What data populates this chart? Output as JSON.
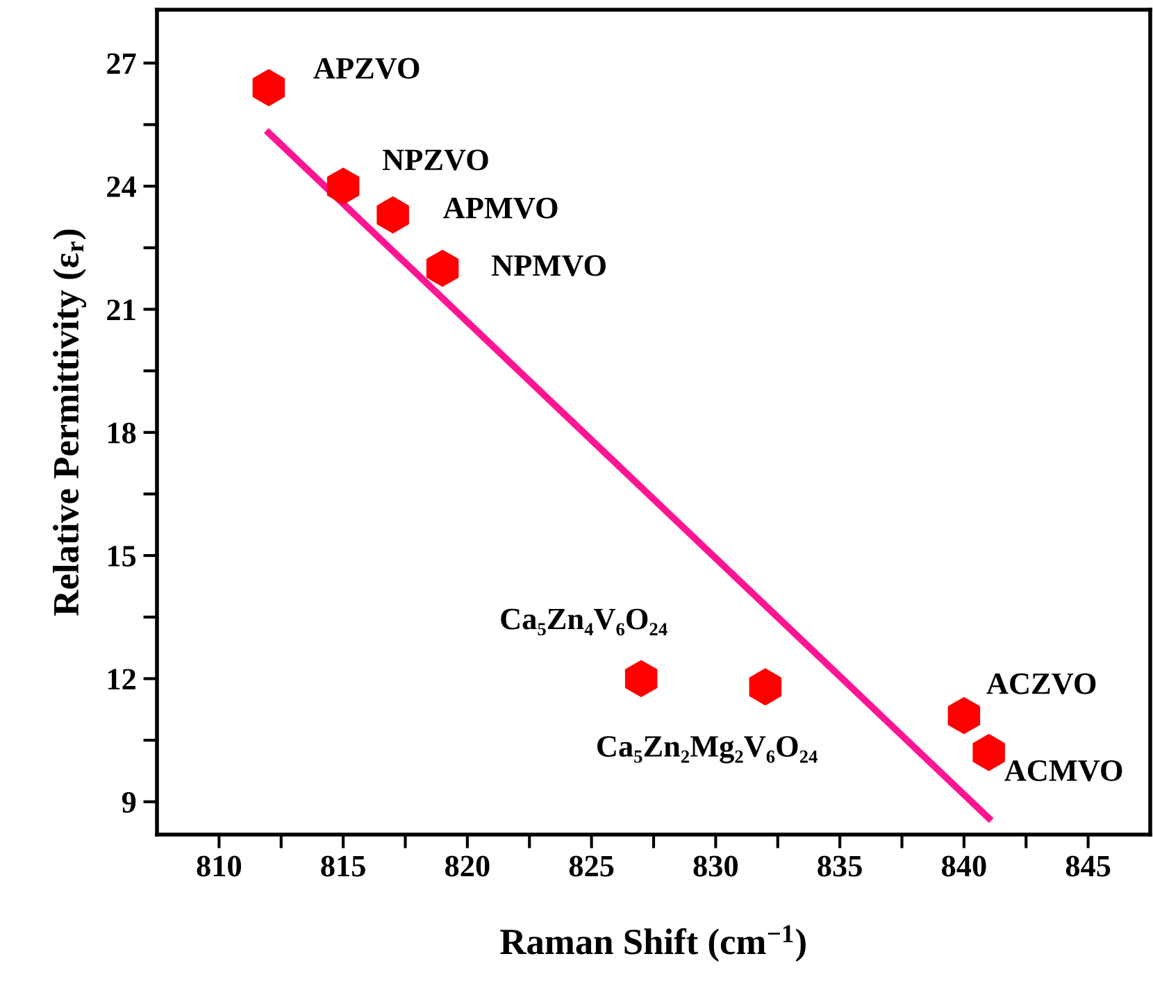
{
  "chart_data": {
    "type": "scatter",
    "xlabel": "Raman Shift (cm$^{−1}$)",
    "ylabel": "Relative Permittivity (ε$_{r}$)",
    "xlim": [
      807.5,
      847.5
    ],
    "xticks": [
      810,
      {
        "value": 812.5,
        "label": null
      },
      815,
      {
        "value": 817.5,
        "label": null
      },
      820,
      {
        "value": 822.5,
        "label": null
      },
      825,
      {
        "value": 827.5,
        "label": null
      },
      830,
      {
        "value": 832.5,
        "label": null
      },
      835,
      {
        "value": 837.5,
        "label": null
      },
      840,
      {
        "value": 842.5,
        "label": null
      },
      845
    ],
    "ylim": [
      8.2,
      28.3
    ],
    "yticks": [
      9,
      {
        "value": 10.5,
        "label": null
      },
      12,
      {
        "value": 13.5,
        "label": null
      },
      15,
      {
        "value": 16.5,
        "label": null
      },
      18,
      {
        "value": 19.5,
        "label": null
      },
      21,
      {
        "value": 22.5,
        "label": null
      },
      24,
      {
        "value": 25.5,
        "label": null
      },
      27
    ],
    "grid": false,
    "legend": false,
    "series": [
      {
        "color": "#ff0000",
        "x": [
          812,
          815,
          817,
          819,
          827,
          832,
          840,
          841
        ],
        "values": [
          26.4,
          24.0,
          23.3,
          22.0,
          12.0,
          11.8,
          11.1,
          10.2
        ]
      },
      {
        "type": "line",
        "color": "#ff1493",
        "marker": "none",
        "line_style": "solid",
        "x": [
          812,
          841
        ],
        "values": [
          25.3,
          8.6
        ]
      }
    ],
    "annotations": [
      {
        "text": "APZVO",
        "x": 812,
        "y": 26.4
      },
      {
        "text": "NPZVO",
        "x": 815,
        "y": 24.0
      },
      {
        "text": "APMVO",
        "x": 817,
        "y": 23.3
      },
      {
        "text": "NPMVO",
        "x": 819,
        "y": 22.0
      },
      {
        "text": "Ca₅Zn₄V₆O₂₄",
        "x": 827,
        "y": 12.0
      },
      {
        "text": "Ca₅Zn₂Mg₂V₆O₂₄",
        "x": 832,
        "y": 11.8
      },
      {
        "text": "ACZVO",
        "x": 840,
        "y": 11.1
      },
      {
        "text": "ACMVO",
        "x": 841,
        "y": 10.2
      }
    ]
  }
}
